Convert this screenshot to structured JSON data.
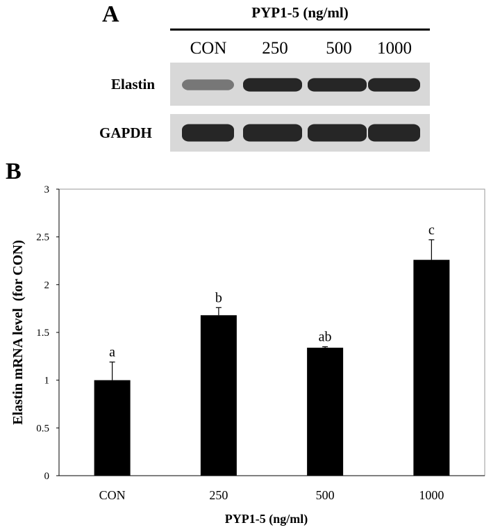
{
  "panel_a": {
    "label": "A",
    "treatment_title": "PYP1-5 (ng/ml)",
    "lanes": [
      "CON",
      "250",
      "500",
      "1000"
    ],
    "rows": [
      {
        "name": "Elastin",
        "band_intensity": [
          0.45,
          0.9,
          0.9,
          0.9
        ]
      },
      {
        "name": "GAPDH",
        "band_intensity": [
          0.9,
          0.9,
          0.9,
          0.9
        ]
      }
    ]
  },
  "panel_b": {
    "label": "B"
  },
  "chart_data": {
    "type": "bar",
    "categories": [
      "CON",
      "250",
      "500",
      "1000"
    ],
    "values": [
      1.0,
      1.68,
      1.34,
      2.26
    ],
    "error": [
      0.19,
      0.08,
      0.01,
      0.21
    ],
    "significance_letters": [
      "a",
      "b",
      "ab",
      "c"
    ],
    "xlabel": "PYP1-5 (ng/ml)",
    "ylabel": "Elastin mRNA level  (for CON)",
    "ylim": [
      0,
      3
    ],
    "yticks": [
      0,
      0.5,
      1,
      1.5,
      2,
      2.5,
      3
    ],
    "ytick_labels": [
      "0",
      "0.5",
      "1",
      "1.5",
      "2",
      "2.5",
      "3"
    ],
    "bar_color": "#000000",
    "grid": false,
    "legend": "none"
  }
}
